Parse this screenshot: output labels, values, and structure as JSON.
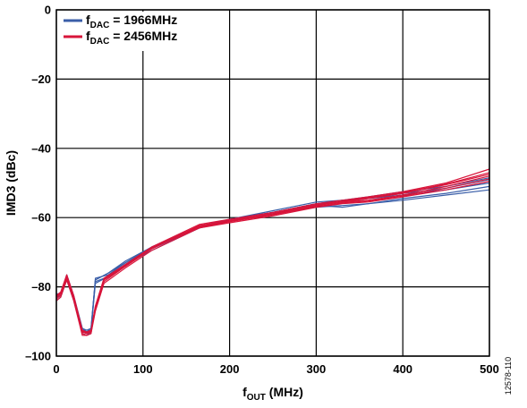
{
  "chart_data": {
    "type": "line",
    "title": "",
    "xlabel": {
      "main": "f",
      "sub": "OUT",
      "rest": " (MHz)"
    },
    "ylabel": "IMD3 (dBc)",
    "xlim": [
      0,
      500
    ],
    "ylim": [
      -100,
      0
    ],
    "xticks": [
      0,
      100,
      200,
      300,
      400,
      500
    ],
    "yticks": [
      0,
      -20,
      -40,
      -60,
      -80,
      -100
    ],
    "ytick_labels": [
      "0",
      "–20",
      "–40",
      "–60",
      "–80",
      "–100"
    ],
    "grid": true,
    "legend_position": "top-left",
    "figure_id": "12578-110",
    "series": [
      {
        "name": {
          "main": "f",
          "sub": "DAC",
          "rest": " = 1966MHz"
        },
        "color": "#3a5ea8",
        "curves": [
          {
            "x": [
              0,
              5,
              12,
              20,
              30,
              35,
              40,
              45,
              60,
              80,
              110,
              165,
              200,
              250,
              300,
              330,
              360,
              400,
              450,
              500
            ],
            "y": [
              -82,
              -82,
              -77,
              -83,
              -92,
              -93,
              -92,
              -78,
              -76,
              -73,
              -69,
              -63,
              -61,
              -59,
              -57,
              -56.5,
              -56,
              -55,
              -53.5,
              -52
            ]
          },
          {
            "x": [
              0,
              5,
              12,
              20,
              30,
              35,
              40,
              45,
              60,
              80,
              110,
              165,
              200,
              250,
              300,
              330,
              360,
              400,
              450,
              500
            ],
            "y": [
              -83,
              -82,
              -77.5,
              -83.5,
              -93,
              -93.5,
              -93,
              -78.5,
              -77,
              -73.5,
              -69.5,
              -63,
              -61,
              -59,
              -56.5,
              -57,
              -56,
              -54.5,
              -53,
              -51
            ]
          },
          {
            "x": [
              0,
              5,
              12,
              20,
              30,
              35,
              40,
              45,
              60,
              80,
              110,
              165,
              200,
              250,
              300,
              330,
              360,
              400,
              450,
              500
            ],
            "y": [
              -84,
              -83,
              -78,
              -84,
              -93.5,
              -94,
              -93,
              -77.5,
              -76.5,
              -73,
              -68.5,
              -62.5,
              -60.5,
              -58.5,
              -56,
              -55.5,
              -54.5,
              -53.5,
              -52,
              -50
            ]
          },
          {
            "x": [
              0,
              5,
              12,
              20,
              30,
              35,
              40,
              45,
              60,
              80,
              110,
              165,
              200,
              250,
              300,
              330,
              360,
              400,
              450,
              500
            ],
            "y": [
              -83,
              -82.5,
              -77,
              -83,
              -92.5,
              -93,
              -92.5,
              -79,
              -77,
              -73.5,
              -69,
              -63,
              -60.5,
              -58.5,
              -56,
              -55,
              -54.5,
              -53,
              -51.5,
              -49
            ]
          },
          {
            "x": [
              0,
              5,
              12,
              20,
              30,
              35,
              40,
              45,
              60,
              80,
              110,
              165,
              200,
              250,
              300,
              330,
              360,
              400,
              450,
              500
            ],
            "y": [
              -82.5,
              -82,
              -76.5,
              -82.5,
              -92,
              -92.5,
              -92,
              -78,
              -76,
              -72.5,
              -68.5,
              -62.5,
              -60.5,
              -58,
              -55.5,
              -55,
              -54,
              -52.5,
              -51,
              -48.5
            ]
          }
        ]
      },
      {
        "name": {
          "main": "f",
          "sub": "DAC",
          "rest": " = 2456MHz"
        },
        "color": "#d8143a",
        "curves": [
          {
            "x": [
              0,
              5,
              12,
              20,
              30,
              35,
              40,
              45,
              55,
              80,
              110,
              165,
              200,
              250,
              300,
              330,
              360,
              400,
              450,
              500
            ],
            "y": [
              -83,
              -82,
              -77,
              -83,
              -93,
              -93.5,
              -93,
              -86,
              -78,
              -74,
              -69,
              -62.5,
              -61,
              -59,
              -56.5,
              -55.5,
              -55,
              -53.5,
              -51,
              -48
            ]
          },
          {
            "x": [
              0,
              5,
              12,
              20,
              30,
              35,
              40,
              45,
              55,
              80,
              110,
              165,
              200,
              250,
              300,
              330,
              360,
              400,
              450,
              500
            ],
            "y": [
              -84,
              -83,
              -78,
              -84,
              -94,
              -94,
              -93.5,
              -87,
              -79,
              -74.5,
              -69.5,
              -63,
              -61.5,
              -59.5,
              -57,
              -56,
              -55.5,
              -54,
              -52,
              -49.5
            ]
          },
          {
            "x": [
              0,
              5,
              12,
              20,
              30,
              35,
              40,
              45,
              55,
              80,
              110,
              165,
              200,
              250,
              300,
              330,
              360,
              400,
              450,
              500
            ],
            "y": [
              -82.5,
              -81.5,
              -76.5,
              -82.5,
              -92.5,
              -93,
              -92.5,
              -85.5,
              -77.5,
              -73.5,
              -68.5,
              -62,
              -60.5,
              -58.5,
              -56,
              -55,
              -54,
              -52.5,
              -50,
              -46
            ]
          },
          {
            "x": [
              0,
              5,
              12,
              20,
              30,
              35,
              40,
              45,
              55,
              80,
              110,
              165,
              200,
              250,
              300,
              330,
              360,
              400,
              450,
              500
            ],
            "y": [
              -83,
              -82,
              -77,
              -83,
              -93,
              -93.5,
              -93,
              -86.5,
              -78.5,
              -74,
              -69,
              -62.5,
              -61,
              -59,
              -56.5,
              -55.5,
              -54.5,
              -53,
              -50.5,
              -47.5
            ]
          },
          {
            "x": [
              0,
              5,
              12,
              20,
              30,
              35,
              40,
              45,
              55,
              80,
              110,
              165,
              200,
              250,
              300,
              330,
              360,
              400,
              450,
              500
            ],
            "y": [
              -83.5,
              -82.5,
              -77.5,
              -83.5,
              -93.5,
              -94,
              -93.5,
              -86,
              -78,
              -74,
              -69,
              -62.8,
              -61.2,
              -59.2,
              -56.8,
              -55.8,
              -55.2,
              -53.8,
              -51.5,
              -48.8
            ]
          },
          {
            "x": [
              0,
              5,
              12,
              20,
              30,
              35,
              40,
              45,
              55,
              80,
              110,
              165,
              200,
              250,
              300,
              330,
              360,
              400,
              450,
              500
            ],
            "y": [
              -82.8,
              -81.8,
              -76.8,
              -82.8,
              -92.8,
              -93.3,
              -92.8,
              -85.8,
              -77.8,
              -73.8,
              -68.8,
              -62.3,
              -60.8,
              -58.8,
              -56.3,
              -55.3,
              -54.3,
              -52.8,
              -50.3,
              -47
            ]
          }
        ]
      }
    ]
  }
}
